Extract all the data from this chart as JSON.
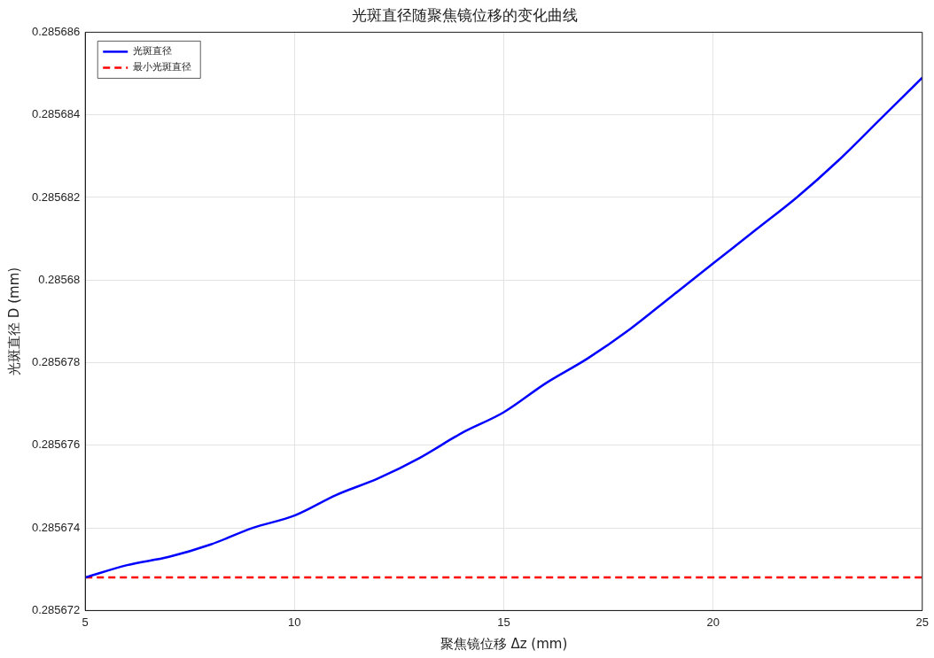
{
  "chart_data": {
    "type": "line",
    "title": "光斑直径随聚焦镜位移的变化曲线",
    "xlabel": "聚焦镜位移 Δz (mm)",
    "ylabel": "光斑直径 D (mm)",
    "xlim": [
      5,
      25
    ],
    "xticks": [
      5,
      10,
      15,
      20,
      25
    ],
    "ylim": [
      0.285672,
      0.285686
    ],
    "yticks": [
      0.285672,
      0.285674,
      0.285676,
      0.285678,
      0.28568,
      0.285682,
      0.285684,
      0.285686
    ],
    "grid": true,
    "legend": "top left",
    "marker": "none",
    "series": [
      {
        "name": "光斑直径",
        "color": "#0000ff",
        "line_style": "solid",
        "x": [
          5,
          6,
          7,
          8,
          9,
          10,
          11,
          12,
          13,
          14,
          15,
          16,
          17,
          18,
          19,
          20,
          21,
          22,
          23,
          24,
          25
        ],
        "values": [
          0.2856728,
          0.2856731,
          0.2856733,
          0.2856736,
          0.285674,
          0.2856743,
          0.2856748,
          0.2856752,
          0.2856757,
          0.2856763,
          0.2856768,
          0.2856775,
          0.2856781,
          0.2856788,
          0.2856796,
          0.2856804,
          0.2856812,
          0.285682,
          0.2856829,
          0.2856839,
          0.2856849
        ]
      },
      {
        "name": "最小光斑直径",
        "color": "#ff0000",
        "line_style": "dashed",
        "x": [
          5,
          25
        ],
        "values": [
          0.2856728,
          0.2856728
        ]
      }
    ]
  }
}
